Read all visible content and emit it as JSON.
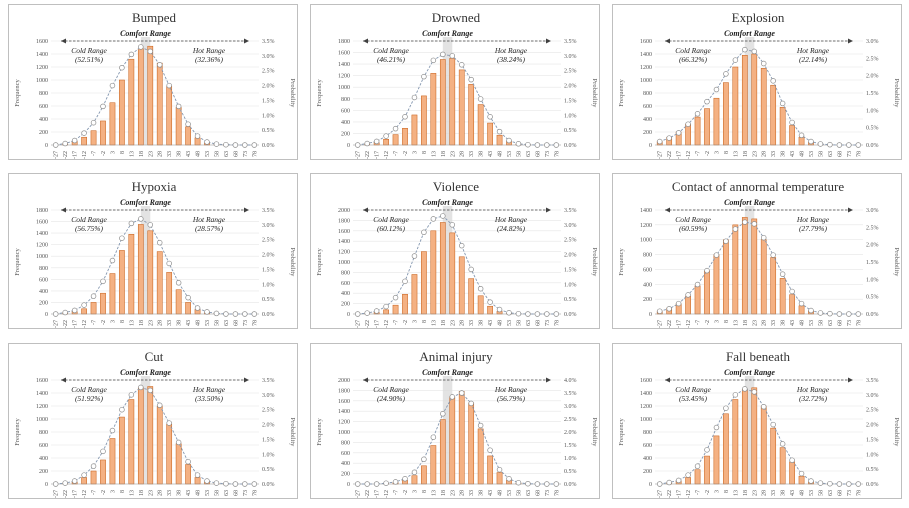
{
  "chart_data": [
    {
      "type": "bar",
      "title": "Bumped",
      "xlabel": "",
      "ylabel": "Frequency",
      "y2label": "Probability",
      "categories": [
        "-27",
        "-22",
        "-17",
        "-12",
        "-7",
        "-2",
        "3",
        "8",
        "13",
        "18",
        "23",
        "28",
        "33",
        "38",
        "43",
        "48",
        "53",
        "58",
        "63",
        "68",
        "73",
        "78"
      ],
      "values": [
        0,
        20,
        60,
        120,
        220,
        370,
        650,
        1000,
        1320,
        1480,
        1520,
        1260,
        900,
        580,
        280,
        110,
        30,
        8,
        3,
        0,
        0,
        0
      ],
      "probability": [
        0.0,
        0.05,
        0.15,
        0.4,
        0.75,
        1.3,
        2.0,
        2.6,
        3.05,
        3.3,
        3.15,
        2.7,
        2.0,
        1.3,
        0.7,
        0.3,
        0.1,
        0.03,
        0.01,
        0.0,
        0.0,
        0.0
      ],
      "ylim": [
        0,
        1600
      ],
      "yticks": [
        0,
        200,
        400,
        600,
        800,
        1000,
        1200,
        1400,
        1600
      ],
      "y2lim": [
        0,
        3.5
      ],
      "y2ticks": [
        "0.0%",
        "0.5%",
        "1.0%",
        "1.5%",
        "2.0%",
        "2.5%",
        "3.0%",
        "3.5%"
      ],
      "comfort_label": "Comfort Range",
      "comfort_band": [
        "18",
        "23"
      ],
      "cold_label": "Cold Range",
      "cold_pct": "(52.51%)",
      "hot_label": "Hot Range",
      "hot_pct": "(32.36%)"
    },
    {
      "type": "bar",
      "title": "Drowned",
      "xlabel": "",
      "ylabel": "Frequency",
      "y2label": "Probability",
      "categories": [
        "-27",
        "-22",
        "-17",
        "-12",
        "-7",
        "-2",
        "3",
        "8",
        "13",
        "18",
        "23",
        "28",
        "33",
        "38",
        "43",
        "48",
        "53",
        "58",
        "63",
        "68",
        "73",
        "78"
      ],
      "values": [
        0,
        20,
        40,
        100,
        180,
        290,
        520,
        850,
        1240,
        1480,
        1500,
        1300,
        1050,
        700,
        380,
        170,
        60,
        15,
        5,
        0,
        0,
        0
      ],
      "probability": [
        0.0,
        0.05,
        0.12,
        0.3,
        0.55,
        0.95,
        1.6,
        2.3,
        2.85,
        3.05,
        3.0,
        2.7,
        2.2,
        1.55,
        0.95,
        0.45,
        0.15,
        0.04,
        0.01,
        0.0,
        0.0,
        0.0
      ],
      "ylim": [
        0,
        1800
      ],
      "yticks": [
        0,
        200,
        400,
        600,
        800,
        1000,
        1200,
        1400,
        1600,
        1800
      ],
      "y2lim": [
        0,
        3.5
      ],
      "y2ticks": [
        "0.0%",
        "0.5%",
        "1.0%",
        "1.5%",
        "2.0%",
        "2.5%",
        "3.0%",
        "3.5%"
      ],
      "comfort_label": "Comfort Range",
      "comfort_band": [
        "18",
        "23"
      ],
      "cold_label": "Cold Range",
      "cold_pct": "(46.21%)",
      "hot_label": "Hot Range",
      "hot_pct": "(38.24%)"
    },
    {
      "type": "bar",
      "title": "Explosion",
      "xlabel": "",
      "ylabel": "Frequency",
      "y2label": "Probability",
      "categories": [
        "-27",
        "-22",
        "-17",
        "-12",
        "-7",
        "-2",
        "3",
        "8",
        "13",
        "18",
        "23",
        "28",
        "33",
        "38",
        "43",
        "48",
        "53",
        "58",
        "63",
        "68",
        "73",
        "78"
      ],
      "values": [
        60,
        120,
        200,
        320,
        430,
        560,
        720,
        960,
        1200,
        1380,
        1400,
        1180,
        920,
        580,
        300,
        120,
        40,
        10,
        3,
        0,
        0,
        0
      ],
      "probability": [
        0.1,
        0.2,
        0.35,
        0.6,
        0.9,
        1.25,
        1.6,
        2.05,
        2.45,
        2.75,
        2.7,
        2.35,
        1.85,
        1.2,
        0.65,
        0.28,
        0.1,
        0.03,
        0.01,
        0.0,
        0.0,
        0.0
      ],
      "ylim": [
        0,
        1600
      ],
      "yticks": [
        0,
        200,
        400,
        600,
        800,
        1000,
        1200,
        1400,
        1600
      ],
      "y2lim": [
        0,
        3.0
      ],
      "y2ticks": [
        "0.0%",
        "0.5%",
        "1.0%",
        "1.5%",
        "2.0%",
        "2.5%",
        "3.0%"
      ],
      "comfort_label": "Comfort Range",
      "comfort_band": [
        "18",
        "23"
      ],
      "cold_label": "Cold Range",
      "cold_pct": "(66.32%)",
      "hot_label": "Hot Range",
      "hot_pct": "(22.14%)"
    },
    {
      "type": "bar",
      "title": "Hypoxia",
      "xlabel": "",
      "ylabel": "Frequency",
      "y2label": "Probability",
      "categories": [
        "-27",
        "-22",
        "-17",
        "-12",
        "-7",
        "-2",
        "3",
        "8",
        "13",
        "18",
        "23",
        "28",
        "33",
        "38",
        "43",
        "48",
        "53",
        "58",
        "63",
        "68",
        "73",
        "78"
      ],
      "values": [
        0,
        20,
        40,
        90,
        200,
        360,
        700,
        1100,
        1380,
        1550,
        1440,
        1080,
        720,
        420,
        200,
        80,
        20,
        5,
        0,
        0,
        0,
        0
      ],
      "probability": [
        0.0,
        0.05,
        0.12,
        0.3,
        0.6,
        1.1,
        1.8,
        2.55,
        3.05,
        3.2,
        3.0,
        2.4,
        1.7,
        1.05,
        0.55,
        0.2,
        0.07,
        0.02,
        0.0,
        0.0,
        0.0,
        0.0
      ],
      "ylim": [
        0,
        1800
      ],
      "yticks": [
        0,
        200,
        400,
        600,
        800,
        1000,
        1200,
        1400,
        1600,
        1800
      ],
      "y2lim": [
        0,
        3.5
      ],
      "y2ticks": [
        "0.0%",
        "0.5%",
        "1.0%",
        "1.5%",
        "2.0%",
        "2.5%",
        "3.0%",
        "3.5%"
      ],
      "comfort_label": "Comfort Range",
      "comfort_band": [
        "18",
        "23"
      ],
      "cold_label": "Cold Range",
      "cold_pct": "(56.75%)",
      "hot_label": "Hot Range",
      "hot_pct": "(28.57%)"
    },
    {
      "type": "bar",
      "title": "Violence",
      "xlabel": "",
      "ylabel": "Frequency",
      "y2label": "Probability",
      "categories": [
        "-27",
        "-22",
        "-17",
        "-12",
        "-7",
        "-2",
        "3",
        "8",
        "13",
        "18",
        "23",
        "28",
        "33",
        "38",
        "43",
        "48",
        "53",
        "58",
        "63",
        "68",
        "73",
        "78"
      ],
      "values": [
        0,
        10,
        30,
        80,
        170,
        380,
        760,
        1200,
        1600,
        1760,
        1560,
        1100,
        680,
        350,
        150,
        50,
        10,
        3,
        0,
        0,
        0,
        0
      ],
      "probability": [
        0.0,
        0.03,
        0.1,
        0.25,
        0.55,
        1.1,
        1.95,
        2.75,
        3.2,
        3.3,
        3.0,
        2.3,
        1.5,
        0.85,
        0.4,
        0.15,
        0.04,
        0.01,
        0.0,
        0.0,
        0.0,
        0.0
      ],
      "ylim": [
        0,
        2000
      ],
      "yticks": [
        0,
        200,
        400,
        600,
        800,
        1000,
        1200,
        1400,
        1600,
        1800,
        2000
      ],
      "y2lim": [
        0,
        3.5
      ],
      "y2ticks": [
        "0.0%",
        "0.5%",
        "1.0%",
        "1.5%",
        "2.0%",
        "2.5%",
        "3.0%",
        "3.5%"
      ],
      "comfort_label": "Comfort Range",
      "comfort_band": [
        "18",
        "23"
      ],
      "cold_label": "Cold Range",
      "cold_pct": "(60.12%)",
      "hot_label": "Hot Range",
      "hot_pct": "(24.82%)"
    },
    {
      "type": "bar",
      "title": "Contact of annormal temperature",
      "xlabel": "",
      "ylabel": "Frequency",
      "y2label": "Probability",
      "categories": [
        "-27",
        "-22",
        "-17",
        "-12",
        "-7",
        "-2",
        "3",
        "8",
        "13",
        "18",
        "23",
        "28",
        "33",
        "38",
        "43",
        "48",
        "53",
        "58",
        "63",
        "68",
        "73",
        "78"
      ],
      "values": [
        40,
        80,
        140,
        240,
        380,
        580,
        800,
        1000,
        1200,
        1300,
        1280,
        1000,
        760,
        480,
        260,
        110,
        40,
        10,
        3,
        0,
        0,
        0
      ],
      "probability": [
        0.08,
        0.15,
        0.3,
        0.55,
        0.85,
        1.25,
        1.7,
        2.1,
        2.45,
        2.65,
        2.6,
        2.2,
        1.7,
        1.15,
        0.65,
        0.3,
        0.1,
        0.03,
        0.01,
        0.0,
        0.0,
        0.0
      ],
      "ylim": [
        0,
        1400
      ],
      "yticks": [
        0,
        200,
        400,
        600,
        800,
        1000,
        1200,
        1400
      ],
      "y2lim": [
        0,
        3.0
      ],
      "y2ticks": [
        "0.0%",
        "0.5%",
        "1.0%",
        "1.5%",
        "2.0%",
        "2.5%",
        "3.0%"
      ],
      "comfort_label": "Comfort Range",
      "comfort_band": [
        "18",
        "23"
      ],
      "cold_label": "Cold Range",
      "cold_pct": "(60.59%)",
      "hot_label": "Hot Range",
      "hot_pct": "(27.79%)"
    },
    {
      "type": "bar",
      "title": "Cut",
      "xlabel": "",
      "ylabel": "Frequency",
      "y2label": "Probability",
      "categories": [
        "-27",
        "-22",
        "-17",
        "-12",
        "-7",
        "-2",
        "3",
        "8",
        "13",
        "18",
        "23",
        "28",
        "33",
        "38",
        "43",
        "48",
        "53",
        "58",
        "63",
        "68",
        "73",
        "78"
      ],
      "values": [
        0,
        10,
        30,
        100,
        200,
        370,
        700,
        1030,
        1300,
        1480,
        1500,
        1200,
        920,
        620,
        300,
        100,
        30,
        8,
        2,
        0,
        0,
        0
      ],
      "probability": [
        0.0,
        0.03,
        0.1,
        0.3,
        0.6,
        1.1,
        1.8,
        2.5,
        3.0,
        3.25,
        3.15,
        2.65,
        2.05,
        1.4,
        0.75,
        0.3,
        0.1,
        0.03,
        0.01,
        0.0,
        0.0,
        0.0
      ],
      "ylim": [
        0,
        1600
      ],
      "yticks": [
        0,
        200,
        400,
        600,
        800,
        1000,
        1200,
        1400,
        1600
      ],
      "y2lim": [
        0,
        3.5
      ],
      "y2ticks": [
        "0.0%",
        "0.5%",
        "1.0%",
        "1.5%",
        "2.0%",
        "2.5%",
        "3.0%",
        "3.5%"
      ],
      "comfort_label": "Comfort Range",
      "comfort_band": [
        "18",
        "23"
      ],
      "cold_label": "Cold Range",
      "cold_pct": "(51.92%)",
      "hot_label": "Hot Range",
      "hot_pct": "(33.50%)"
    },
    {
      "type": "bar",
      "title": "Animal injury",
      "xlabel": "",
      "ylabel": "Frequency",
      "y2label": "Probability",
      "categories": [
        "-27",
        "-22",
        "-17",
        "-12",
        "-7",
        "-2",
        "3",
        "8",
        "13",
        "18",
        "23",
        "28",
        "33",
        "38",
        "43",
        "48",
        "53",
        "58",
        "63",
        "68",
        "73",
        "78"
      ],
      "values": [
        0,
        0,
        0,
        10,
        30,
        70,
        160,
        350,
        740,
        1240,
        1680,
        1780,
        1560,
        1060,
        540,
        220,
        70,
        20,
        5,
        0,
        0,
        0
      ],
      "probability": [
        0.0,
        0.0,
        0.0,
        0.03,
        0.08,
        0.2,
        0.45,
        0.95,
        1.8,
        2.7,
        3.35,
        3.5,
        3.1,
        2.25,
        1.3,
        0.55,
        0.2,
        0.05,
        0.01,
        0.0,
        0.0,
        0.0
      ],
      "ylim": [
        0,
        2000
      ],
      "yticks": [
        0,
        200,
        400,
        600,
        800,
        1000,
        1200,
        1400,
        1600,
        1800,
        2000
      ],
      "y2lim": [
        0,
        4.0
      ],
      "y2ticks": [
        "0.0%",
        "0.5%",
        "1.0%",
        "1.5%",
        "2.0%",
        "2.5%",
        "3.0%",
        "3.5%",
        "4.0%"
      ],
      "comfort_label": "Comfort Range",
      "comfort_band": [
        "18",
        "23"
      ],
      "cold_label": "Cold Range",
      "cold_pct": "(24.90%)",
      "hot_label": "Hot Range",
      "hot_pct": "(56.79%)"
    },
    {
      "type": "bar",
      "title": "Fall beneath",
      "xlabel": "",
      "ylabel": "Frequency",
      "y2label": "Probability",
      "categories": [
        "-27",
        "-22",
        "-17",
        "-12",
        "-7",
        "-2",
        "3",
        "8",
        "13",
        "18",
        "23",
        "28",
        "33",
        "38",
        "43",
        "48",
        "53",
        "58",
        "63",
        "68",
        "73",
        "78"
      ],
      "values": [
        0,
        20,
        50,
        100,
        220,
        430,
        740,
        1080,
        1300,
        1460,
        1480,
        1200,
        860,
        560,
        340,
        120,
        30,
        8,
        2,
        0,
        0,
        0
      ],
      "probability": [
        0.0,
        0.05,
        0.12,
        0.3,
        0.6,
        1.15,
        1.9,
        2.55,
        3.0,
        3.2,
        3.1,
        2.6,
        2.0,
        1.35,
        0.8,
        0.35,
        0.1,
        0.03,
        0.01,
        0.0,
        0.0,
        0.0
      ],
      "ylim": [
        0,
        1600
      ],
      "yticks": [
        0,
        200,
        400,
        600,
        800,
        1000,
        1200,
        1400,
        1600
      ],
      "y2lim": [
        0,
        3.5
      ],
      "y2ticks": [
        "0.0%",
        "0.5%",
        "1.0%",
        "1.5%",
        "2.0%",
        "2.5%",
        "3.0%",
        "3.5%"
      ],
      "comfort_label": "Comfort Range",
      "comfort_band": [
        "18",
        "23"
      ],
      "cold_label": "Cold Range",
      "cold_pct": "(53.45%)",
      "hot_label": "Hot Range",
      "hot_pct": "(32.72%)"
    }
  ],
  "colors": {
    "bar_fill": "#f4b183",
    "bar_stroke": "#c55a11",
    "line": "#8497b0",
    "marker_fill": "#ffffff",
    "marker_stroke": "#8c8c8c",
    "comfort_band": "#d9d9d9",
    "grid": "#e6e6e6",
    "arrow": "#404040"
  }
}
